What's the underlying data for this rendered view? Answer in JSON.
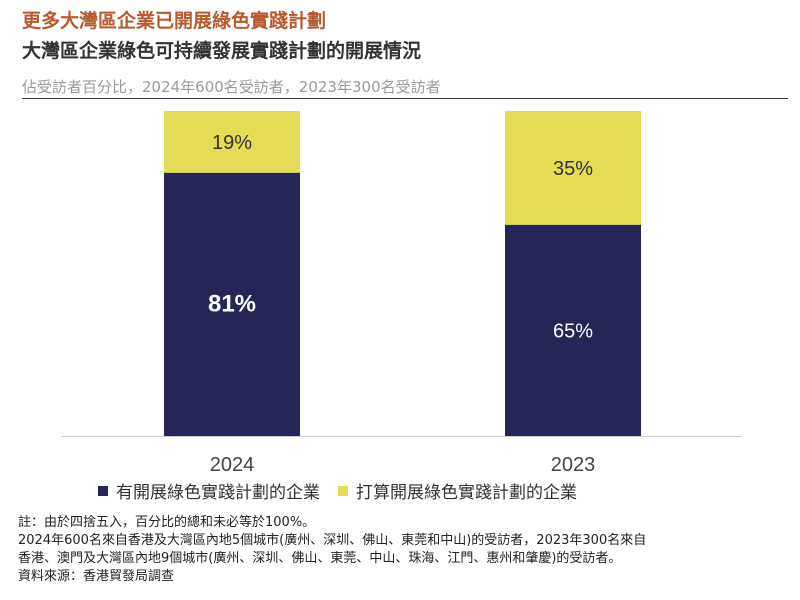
{
  "header": {
    "title": "更多大灣區企業已開展綠色實踐計劃",
    "subtitle": "大灣區企業綠色可持續發展實踐計劃的開展情況",
    "caption": "佔受訪者百分比，2024年600名受訪者，2023年300名受訪者"
  },
  "chart_data": {
    "type": "bar",
    "stacked": true,
    "categories": [
      "2024",
      "2023"
    ],
    "series": [
      {
        "name": "有開展綠色實踐計劃的企業",
        "values": [
          81,
          65
        ],
        "labels": [
          "81%",
          "65%"
        ],
        "color": "#252557"
      },
      {
        "name": "打算開展綠色實踐計劃的企業",
        "values": [
          19,
          35
        ],
        "labels": [
          "19%",
          "35%"
        ],
        "color": "#e3dc54"
      }
    ],
    "ylim": [
      0,
      100
    ],
    "grid": false,
    "legend": "bottom"
  },
  "notes": {
    "line1": "註：由於四捨五入，百分比的總和未必等於100%。",
    "line2": "2024年600名來自香港及大灣區內地5個城市(廣州、深圳、佛山、東莞和中山)的受訪者，2023年300名來自",
    "line3": "香港、澳門及大灣區內地9個城市(廣州、深圳、佛山、東莞、中山、珠海、江門、惠州和肇慶)的受訪者。",
    "line4": "資料來源：香港貿發局調查"
  }
}
